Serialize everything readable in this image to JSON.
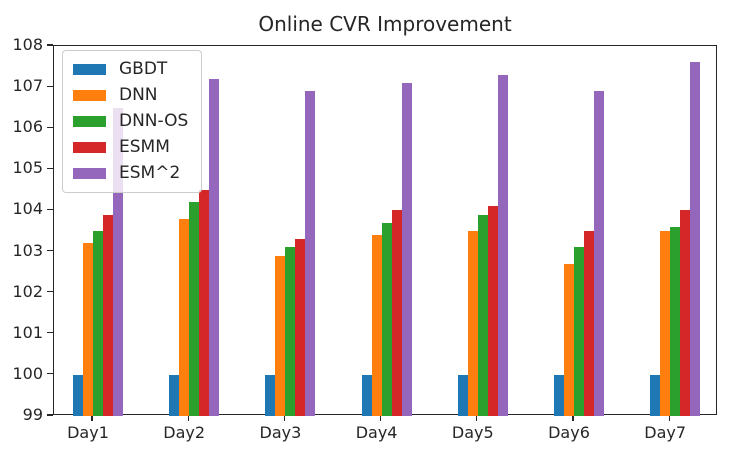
{
  "title": "Online CVR Improvement",
  "text_color": "#262626",
  "axis_color": "#262626",
  "legend_style": {
    "background": "rgba(255,255,255,0.8)",
    "border": "#cccccc"
  },
  "chart_data": {
    "type": "bar",
    "title": "Online CVR Improvement",
    "categories": [
      "Day1",
      "Day2",
      "Day3",
      "Day4",
      "Day5",
      "Day6",
      "Day7"
    ],
    "series": [
      {
        "name": "GBDT",
        "color": "#1f77b4",
        "values": [
          100,
          100,
          100,
          100,
          100,
          100,
          100
        ]
      },
      {
        "name": "DNN",
        "color": "#ff7f0e",
        "values": [
          103.2,
          103.8,
          102.9,
          103.4,
          103.5,
          102.7,
          103.5
        ]
      },
      {
        "name": "DNN-OS",
        "color": "#2ca02c",
        "values": [
          103.5,
          104.2,
          103.1,
          103.7,
          103.9,
          103.1,
          103.6
        ]
      },
      {
        "name": "ESMM",
        "color": "#d62728",
        "values": [
          103.9,
          104.5,
          103.3,
          104.0,
          104.1,
          103.5,
          104.0
        ]
      },
      {
        "name": "ESM^2",
        "color": "#9467bd",
        "values": [
          106.5,
          107.2,
          106.9,
          107.1,
          107.3,
          106.9,
          107.6
        ]
      }
    ],
    "xlabel": "",
    "ylabel": "",
    "ylim": [
      99,
      108
    ],
    "yticks": [
      99,
      100,
      101,
      102,
      103,
      104,
      105,
      106,
      107,
      108
    ],
    "grid": false,
    "legend_position": "upper left"
  }
}
